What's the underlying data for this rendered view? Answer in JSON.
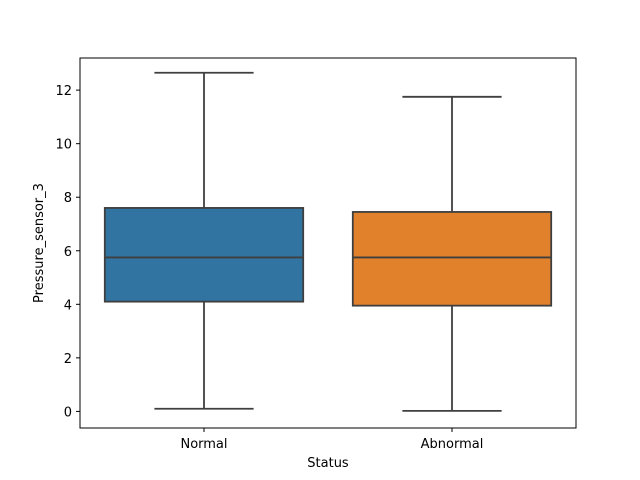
{
  "chart_data": {
    "type": "box",
    "title": "",
    "xlabel": "Status",
    "ylabel": "Pressure_sensor_3",
    "ylim": [
      -0.62,
      13.2
    ],
    "yticks": [
      0,
      2,
      4,
      6,
      8,
      10,
      12
    ],
    "grid": false,
    "categories": [
      "Normal",
      "Abnormal"
    ],
    "boxes": [
      {
        "category": "Normal",
        "min": 0.1,
        "q1": 4.1,
        "median": 5.75,
        "q3": 7.6,
        "max": 12.65,
        "color": "#3274a1"
      },
      {
        "category": "Abnormal",
        "min": 0.02,
        "q1": 3.95,
        "median": 5.75,
        "q3": 7.45,
        "max": 11.75,
        "color": "#e1812c"
      }
    ]
  }
}
